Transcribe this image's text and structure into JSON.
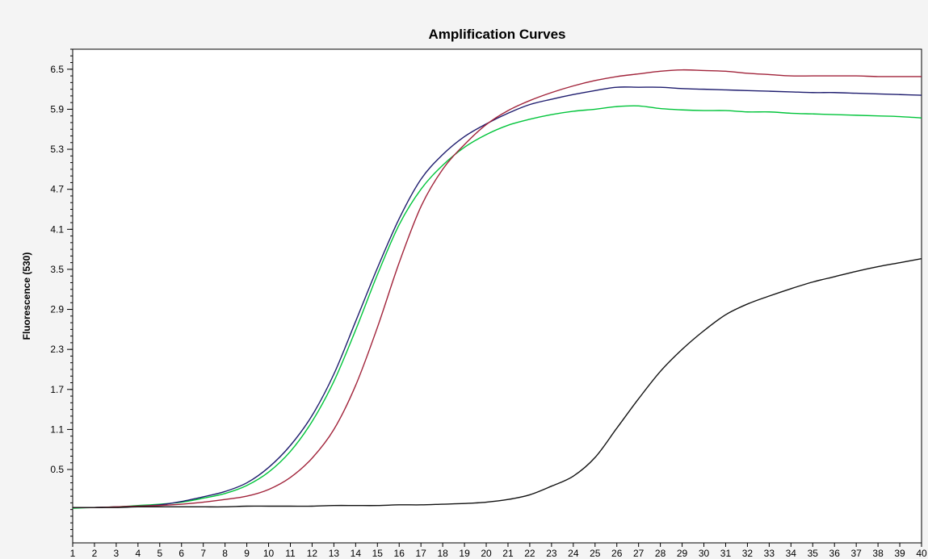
{
  "chart_data": {
    "type": "line",
    "title": "Amplification Curves",
    "xlabel": "",
    "ylabel": "Fluorescence (530)",
    "xlim": [
      1,
      40
    ],
    "ylim": [
      -0.6,
      6.8
    ],
    "x_ticks": [
      1,
      2,
      3,
      4,
      5,
      6,
      7,
      8,
      9,
      10,
      11,
      12,
      13,
      14,
      15,
      16,
      17,
      18,
      19,
      20,
      21,
      22,
      23,
      24,
      25,
      26,
      27,
      28,
      29,
      30,
      31,
      32,
      33,
      34,
      35,
      36,
      37,
      38,
      39,
      40
    ],
    "y_ticks": [
      0.5,
      1.1,
      1.7,
      2.3,
      2.9,
      3.5,
      4.1,
      4.7,
      5.3,
      5.9,
      6.5
    ],
    "y_minor_step": 0.1,
    "grid": false,
    "legend": "none",
    "background_color": "#f4f4f4",
    "plot_background_color": "#ffffff",
    "series": [
      {
        "color": "#00c43a",
        "x": [
          1,
          2,
          3,
          4,
          5,
          6,
          7,
          8,
          9,
          10,
          11,
          12,
          13,
          14,
          15,
          16,
          17,
          18,
          19,
          20,
          21,
          22,
          23,
          24,
          25,
          26,
          27,
          28,
          29,
          30,
          31,
          32,
          33,
          34,
          35,
          36,
          37,
          38,
          39,
          40
        ],
        "y": [
          -0.08,
          -0.07,
          -0.06,
          -0.04,
          -0.02,
          0.01,
          0.07,
          0.14,
          0.26,
          0.46,
          0.77,
          1.22,
          1.82,
          2.59,
          3.42,
          4.17,
          4.7,
          5.06,
          5.33,
          5.52,
          5.66,
          5.75,
          5.82,
          5.87,
          5.9,
          5.94,
          5.95,
          5.91,
          5.89,
          5.88,
          5.88,
          5.86,
          5.86,
          5.84,
          5.83,
          5.82,
          5.81,
          5.8,
          5.79,
          5.77
        ]
      },
      {
        "color": "#1e1c6e",
        "x": [
          1,
          2,
          3,
          4,
          5,
          6,
          7,
          8,
          9,
          10,
          11,
          12,
          13,
          14,
          15,
          16,
          17,
          18,
          19,
          20,
          21,
          22,
          23,
          24,
          25,
          26,
          27,
          28,
          29,
          30,
          31,
          32,
          33,
          34,
          35,
          36,
          37,
          38,
          39,
          40
        ],
        "y": [
          -0.07,
          -0.07,
          -0.06,
          -0.05,
          -0.03,
          0.02,
          0.09,
          0.17,
          0.3,
          0.53,
          0.86,
          1.31,
          1.93,
          2.72,
          3.52,
          4.26,
          4.85,
          5.22,
          5.49,
          5.68,
          5.84,
          5.97,
          6.05,
          6.12,
          6.18,
          6.23,
          6.23,
          6.23,
          6.21,
          6.2,
          6.19,
          6.18,
          6.17,
          6.16,
          6.15,
          6.15,
          6.14,
          6.13,
          6.12,
          6.11
        ]
      },
      {
        "color": "#a1233a",
        "x": [
          1,
          2,
          3,
          4,
          5,
          6,
          7,
          8,
          9,
          10,
          11,
          12,
          13,
          14,
          15,
          16,
          17,
          18,
          19,
          20,
          21,
          22,
          23,
          24,
          25,
          26,
          27,
          28,
          29,
          30,
          31,
          32,
          33,
          34,
          35,
          36,
          37,
          38,
          39,
          40
        ],
        "y": [
          -0.07,
          -0.07,
          -0.06,
          -0.05,
          -0.04,
          -0.02,
          0.01,
          0.05,
          0.1,
          0.2,
          0.38,
          0.67,
          1.1,
          1.76,
          2.63,
          3.6,
          4.44,
          5.0,
          5.37,
          5.67,
          5.88,
          6.03,
          6.15,
          6.25,
          6.33,
          6.39,
          6.43,
          6.47,
          6.49,
          6.48,
          6.47,
          6.44,
          6.42,
          6.4,
          6.4,
          6.4,
          6.4,
          6.39,
          6.39,
          6.39
        ]
      },
      {
        "color": "#111111",
        "x": [
          1,
          2,
          3,
          4,
          5,
          6,
          7,
          8,
          9,
          10,
          11,
          12,
          13,
          14,
          15,
          16,
          17,
          18,
          19,
          20,
          21,
          22,
          23,
          24,
          25,
          26,
          27,
          28,
          29,
          30,
          31,
          32,
          33,
          34,
          35,
          36,
          37,
          38,
          39,
          40
        ],
        "y": [
          -0.07,
          -0.07,
          -0.07,
          -0.06,
          -0.06,
          -0.06,
          -0.06,
          -0.06,
          -0.05,
          -0.05,
          -0.05,
          -0.05,
          -0.04,
          -0.04,
          -0.04,
          -0.03,
          -0.03,
          -0.02,
          -0.01,
          0.01,
          0.05,
          0.12,
          0.25,
          0.4,
          0.68,
          1.12,
          1.56,
          1.97,
          2.3,
          2.58,
          2.82,
          2.98,
          3.1,
          3.21,
          3.31,
          3.39,
          3.47,
          3.54,
          3.6,
          3.66
        ]
      }
    ]
  }
}
